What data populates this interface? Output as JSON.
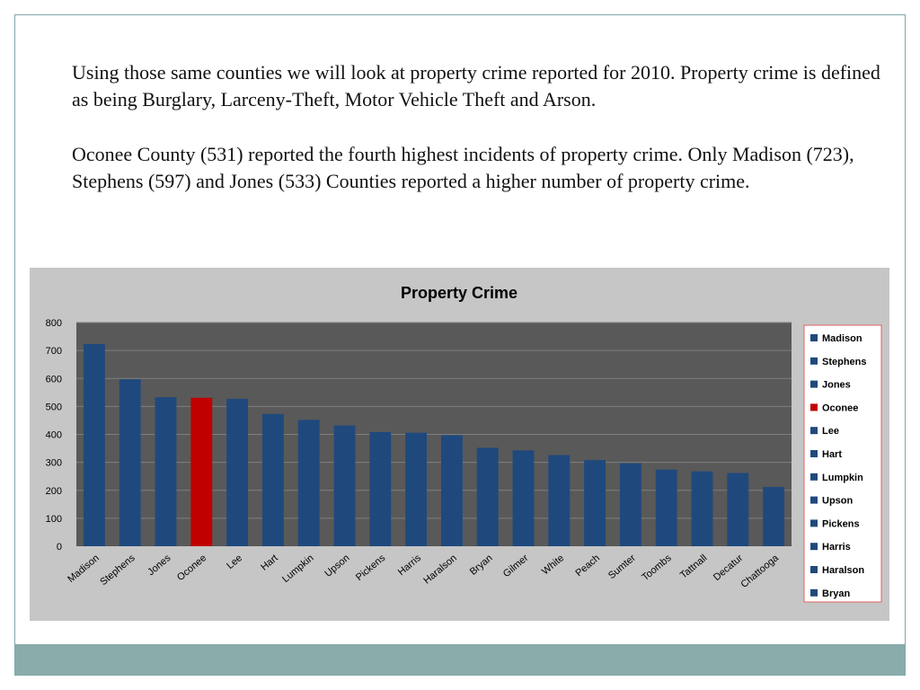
{
  "slide": {
    "paragraph1": "Using those same counties we will look at property crime reported for 2010. Property crime is defined as being Burglary, Larceny-Theft, Motor Vehicle Theft and Arson.",
    "paragraph2": "Oconee County (531) reported the fourth highest incidents of property crime. Only Madison (723), Stephens (597) and Jones (533) Counties reported a higher number of property crime."
  },
  "colors": {
    "bar": "#1f497d",
    "highlight_bar": "#c00000",
    "plot_background": "#595959",
    "chart_background": "#c6c6c6",
    "legend_border": "#e06060",
    "footer_band": "#8aacab"
  },
  "chart_data": {
    "type": "bar",
    "title": "Property Crime",
    "xlabel": "",
    "ylabel": "",
    "ylim": [
      0,
      800
    ],
    "yticks": [
      0,
      100,
      200,
      300,
      400,
      500,
      600,
      700,
      800
    ],
    "grid": true,
    "legend_position": "right",
    "categories": [
      "Madison",
      "Stephens",
      "Jones",
      "Oconee",
      "Lee",
      "Hart",
      "Lumpkin",
      "Upson",
      "Pickens",
      "Harris",
      "Haralson",
      "Bryan",
      "Gilmer",
      "White",
      "Peach",
      "Sumter",
      "Toombs",
      "Tattnall",
      "Decatur",
      "Chattooga"
    ],
    "values": [
      723,
      597,
      533,
      531,
      527,
      473,
      452,
      432,
      408,
      406,
      397,
      352,
      343,
      326,
      308,
      297,
      274,
      268,
      262,
      212
    ],
    "highlighted_category": "Oconee",
    "legend_entries": [
      "Madison",
      "Stephens",
      "Jones",
      "Oconee",
      "Lee",
      "Hart",
      "Lumpkin",
      "Upson",
      "Pickens",
      "Harris",
      "Haralson",
      "Bryan"
    ]
  }
}
